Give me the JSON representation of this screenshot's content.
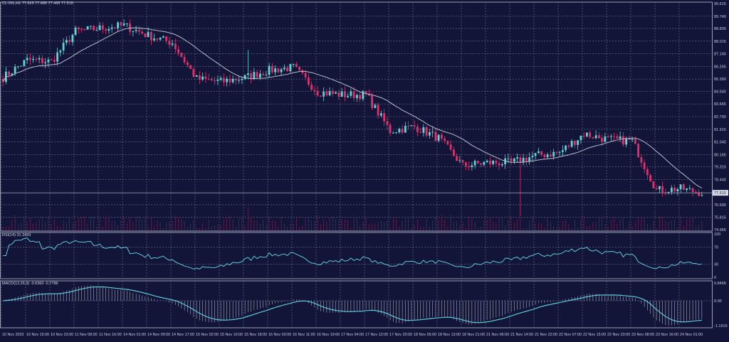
{
  "header": {
    "symbol_info": "CL-OIL,H1  77.625 77.685 77.465 77.515"
  },
  "rsi_panel": {
    "label": "RSI(14) 31.3493"
  },
  "macd_panel": {
    "label": "MACD(12,26,9) -0.6360 -0.7786"
  },
  "colors": {
    "background": "#121538",
    "bull": "#5fd3d8",
    "bear": "#e0306b",
    "grid": "#6b7090",
    "ma": "#b9bccc",
    "indicator": "#5fc8d8"
  },
  "chart_data": [
    {
      "type": "candlestick",
      "symbol": "CL-OIL",
      "timeframe": "H1",
      "last_price": "77.515",
      "price_ticks": [
        "90.615",
        "89.740",
        "88.890",
        "88.015",
        "87.140",
        "86.265",
        "85.390",
        "84.540",
        "83.665",
        "82.790",
        "81.915",
        "81.040",
        "80.165",
        "79.315",
        "78.440",
        "77.515",
        "76.690",
        "75.815",
        "74.965"
      ],
      "ylim": [
        74.965,
        90.615
      ],
      "time_labels": [
        "10 Nov 2022",
        "10 Nov 15:00",
        "10 Nov 23:00",
        "11 Nov 08:00",
        "11 Nov 16:00",
        "14 Nov 01:00",
        "14 Nov 09:00",
        "14 Nov 17:00",
        "15 Nov 02:00",
        "15 Nov 10:00",
        "15 Nov 18:00",
        "16 Nov 03:00",
        "16 Nov 11:00",
        "16 Nov 19:00",
        "17 Nov 04:00",
        "17 Nov 12:00",
        "17 Nov 20:00",
        "18 Nov 05:00",
        "18 Nov 13:00",
        "18 Nov 21:00",
        "21 Nov 06:00",
        "21 Nov 14:00",
        "21 Nov 22:00",
        "22 Nov 07:00",
        "22 Nov 15:00",
        "22 Nov 23:00",
        "23 Nov 08:00",
        "23 Nov 16:00",
        "24 Nov 01:00"
      ],
      "approx_close_at_labels": [
        85.5,
        86.7,
        86.6,
        88.7,
        88.9,
        89.1,
        88.4,
        87.9,
        85.4,
        85.2,
        85.5,
        86.0,
        86.2,
        84.5,
        84.3,
        84.3,
        81.8,
        82.1,
        81.3,
        79.4,
        79.6,
        79.6,
        80.1,
        80.3,
        81.6,
        81.2,
        81.1,
        77.7,
        77.8
      ],
      "final_close": 77.515,
      "extremes": [
        {
          "t": "15 Nov 19:00",
          "high": 87.4
        },
        {
          "t": "21 Nov 17:00",
          "low": 75.9
        }
      ],
      "overlay": "moving average",
      "volume": "histogram"
    },
    {
      "type": "line",
      "name": "RSI(14)",
      "levels": [
        "100",
        "70",
        "30",
        "0"
      ],
      "ylim": [
        0,
        100
      ],
      "last": 31.3493
    },
    {
      "type": "line+histogram",
      "name": "MACD(12,26,9)",
      "ticks": [
        "0.8466",
        "0.00",
        "-1.1915"
      ],
      "ylim": [
        -1.1915,
        0.8466
      ],
      "last_main": -0.636,
      "last_signal": -0.7786
    }
  ]
}
